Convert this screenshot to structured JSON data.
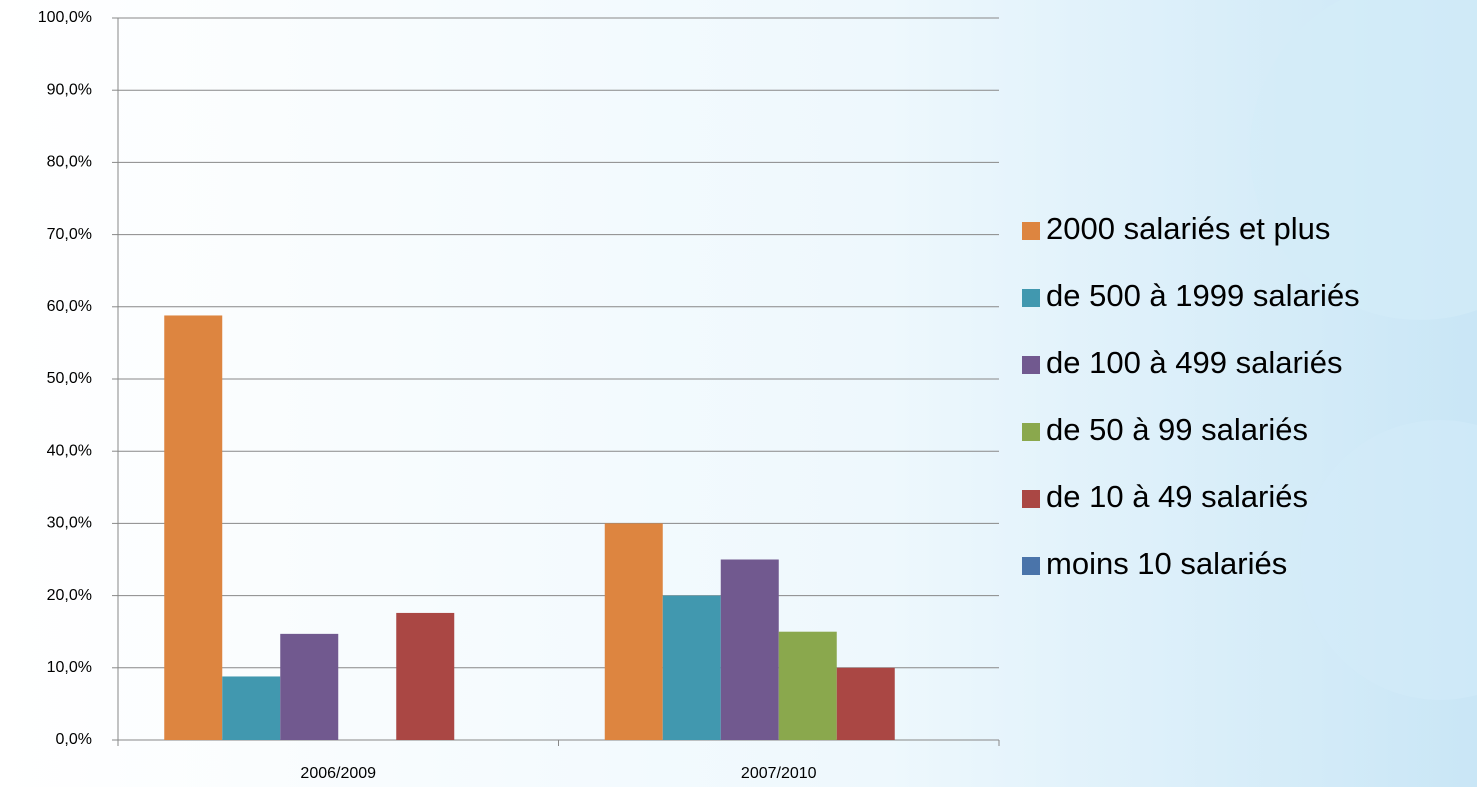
{
  "chart_data": {
    "type": "bar",
    "categories": [
      "2006/2009",
      "2007/2010"
    ],
    "series": [
      {
        "name": "2000 salariés et plus",
        "color": "#dd8540",
        "values": [
          58.8,
          30
        ]
      },
      {
        "name": "de 500 à 1999 salariés",
        "color": "#4198af",
        "values": [
          8.8,
          20
        ]
      },
      {
        "name": "de 100 à 499 salariés",
        "color": "#71598f",
        "values": [
          14.7,
          25
        ]
      },
      {
        "name": "de 50 à 99 salariés",
        "color": "#8aa84d",
        "values": [
          0,
          15
        ]
      },
      {
        "name": "de 10 à 49 salariés",
        "color": "#aa4744",
        "values": [
          17.6,
          10
        ]
      },
      {
        "name": "moins 10 salariés",
        "color": "#4a74aa",
        "values": [
          0,
          0
        ]
      }
    ],
    "ylim": [
      0,
      100
    ],
    "yticks": [
      {
        "value": 0,
        "label": "0,0%"
      },
      {
        "value": 10,
        "label": "10,0%"
      },
      {
        "value": 20,
        "label": "20,0%"
      },
      {
        "value": 30,
        "label": "30,0%"
      },
      {
        "value": 40,
        "label": "40,0%"
      },
      {
        "value": 50,
        "label": "50,0%"
      },
      {
        "value": 60,
        "label": "60,0%"
      },
      {
        "value": 70,
        "label": "70,0%"
      },
      {
        "value": 80,
        "label": "80,0%"
      },
      {
        "value": 90,
        "label": "90,0%"
      },
      {
        "value": 100,
        "label": "100,0%"
      }
    ],
    "grid": true,
    "legend": "right"
  }
}
